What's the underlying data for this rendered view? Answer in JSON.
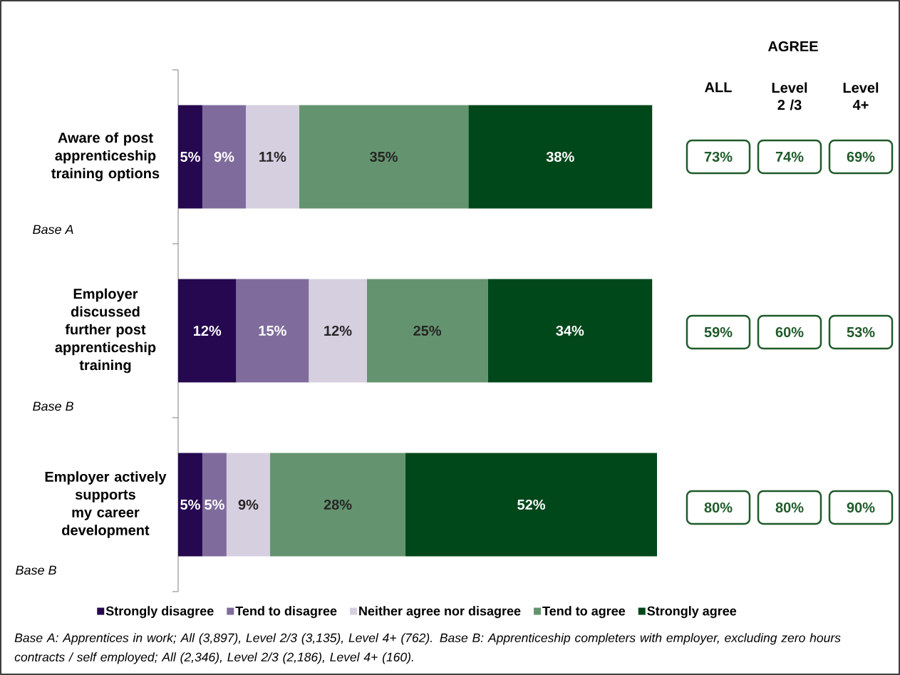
{
  "chart_data": {
    "type": "bar",
    "orientation": "horizontal",
    "stacked": true,
    "legend": "bottom",
    "categories": [
      "Aware of post apprenticeship training options",
      "Employer discussed further post apprenticeship training",
      "Employer actively supports my career development"
    ],
    "series": [
      {
        "name": "Strongly disagree",
        "color": "#25084f",
        "values": [
          5,
          12,
          5
        ],
        "value_labels": [
          "5%",
          "12%",
          "5%"
        ]
      },
      {
        "name": "Tend to disagree",
        "color": "#7f6c9c",
        "values": [
          9,
          15,
          5
        ],
        "value_labels": [
          "9%",
          "15%",
          "5%"
        ]
      },
      {
        "name": "Neither agree nor disagree",
        "color": "#d6cfe0",
        "values": [
          11,
          12,
          9
        ],
        "value_labels": [
          "11%",
          "12%",
          "9%"
        ]
      },
      {
        "name": "Tend to agree",
        "color": "#64946f",
        "values": [
          35,
          25,
          28
        ],
        "value_labels": [
          "35%",
          "25%",
          "28%"
        ]
      },
      {
        "name": "Strongly agree",
        "color": "#00471a",
        "values": [
          38,
          34,
          52
        ],
        "value_labels": [
          "38%",
          "34%",
          "52%"
        ]
      }
    ],
    "annotations": [
      "AGREE",
      "ALL",
      "Level 2 /3",
      "Level 4+",
      "73%",
      "74%",
      "69%",
      "59%",
      "60%",
      "53%",
      "80%",
      "80%",
      "90%",
      "Base A",
      "Base B",
      "Base B",
      "Base A: Apprentices in work; All (3,897), Level 2/3 (3,135), Level 4+ (762).  Base B: Apprenticeship completers with employer, excluding zero hours contracts / self employed; All (2,346), Level 2/3 (2,186), Level 4+ (160)."
    ]
  }
}
